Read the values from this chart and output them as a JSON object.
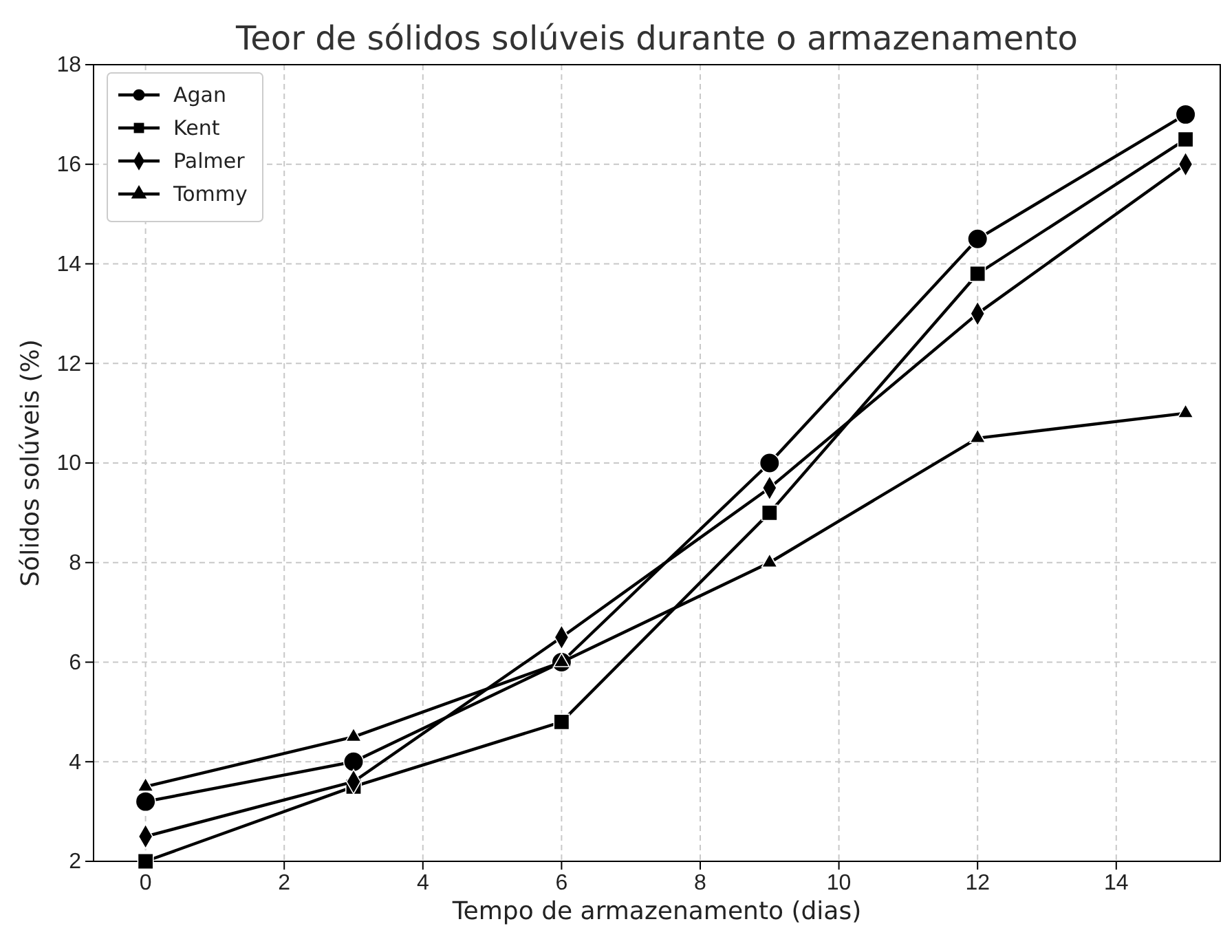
{
  "chart_data": {
    "type": "line",
    "title": "Teor de sólidos solúveis durante o armazenamento",
    "xlabel": "Tempo de armazenamento (dias)",
    "ylabel": "Sólidos solúveis (%)",
    "x": [
      0,
      3,
      6,
      9,
      12,
      15
    ],
    "series": [
      {
        "name": "Agan",
        "color": "#000000",
        "marker": "circle",
        "values": [
          3.2,
          4.0,
          6.0,
          10.0,
          14.5,
          17.0
        ]
      },
      {
        "name": "Kent",
        "color": "#000000",
        "marker": "square",
        "values": [
          2.0,
          3.5,
          4.8,
          9.0,
          13.8,
          16.5
        ]
      },
      {
        "name": "Palmer",
        "color": "#000000",
        "marker": "diamond",
        "values": [
          2.5,
          3.6,
          6.5,
          9.5,
          13.0,
          16.0
        ]
      },
      {
        "name": "Tommy",
        "color": "#000000",
        "marker": "triangle",
        "values": [
          3.5,
          4.5,
          6.0,
          8.0,
          10.5,
          11.0
        ]
      }
    ],
    "xlim": [
      -0.75,
      15.5
    ],
    "xticks": [
      0,
      2,
      4,
      6,
      8,
      10,
      12,
      14
    ],
    "ylim": [
      2,
      18
    ],
    "yticks": [
      2,
      4,
      6,
      8,
      10,
      12,
      14,
      16,
      18
    ],
    "grid": true,
    "legend": "top left",
    "line_style": "solid"
  }
}
